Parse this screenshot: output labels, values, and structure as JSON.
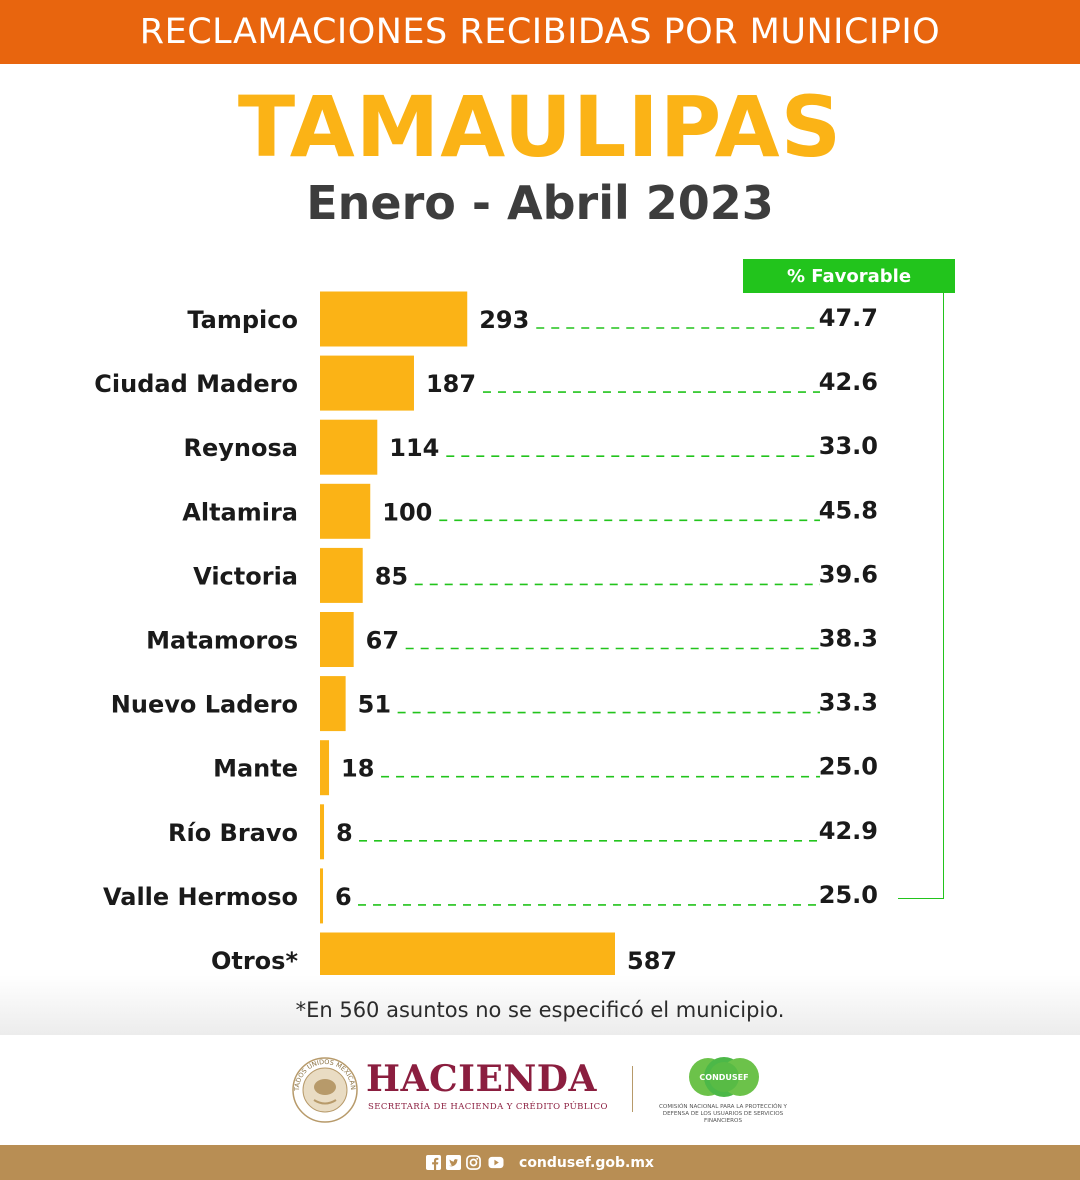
{
  "header": {
    "banner": "RECLAMACIONES RECIBIDAS POR MUNICIPIO",
    "title": "TAMAULIPAS",
    "subtitle": "Enero - Abril 2023"
  },
  "chart_data": {
    "type": "bar",
    "orientation": "horizontal",
    "title": "TAMAULIPAS",
    "subtitle": "Enero - Abril 2023",
    "categories": [
      "Tampico",
      "Ciudad Madero",
      "Reynosa",
      "Altamira",
      "Victoria",
      "Matamoros",
      "Nuevo Ladero",
      "Mante",
      "Río Bravo",
      "Valle Hermoso",
      "Otros*"
    ],
    "series": [
      {
        "values": [
          293,
          187,
          114,
          100,
          85,
          67,
          51,
          18,
          8,
          6,
          587
        ]
      }
    ],
    "favorable_label": "% Favorable",
    "favorable_values": [
      "47.7",
      "42.6",
      "33.0",
      "45.8",
      "39.6",
      "38.3",
      "33.3",
      "25.0",
      "42.9",
      "25.0",
      null
    ],
    "bar_color": "#fbb316",
    "leader_color": "#22c41c",
    "grid": false,
    "legend": "none"
  },
  "footnote": "*En 560 asuntos no se especificó el municipio.",
  "logos": {
    "hacienda_name": "HACIENDA",
    "hacienda_sub": "SECRETARÍA DE HACIENDA Y CRÉDITO PÚBLICO",
    "hacienda_seal_text": "ESTADOS UNIDOS MEXICANOS",
    "condusef_name": "CONDUSEF",
    "condusef_sub": "COMISIÓN NACIONAL PARA LA PROTECCIÓN Y DEFENSA DE LOS USUARIOS DE SERVICIOS FINANCIEROS"
  },
  "footer": {
    "icons": [
      "facebook-icon",
      "twitter-icon",
      "instagram-icon",
      "youtube-icon"
    ],
    "url": "condusef.gob.mx"
  },
  "colors": {
    "banner": "#e8650e",
    "title": "#fbb316",
    "favorable_box": "#22c41c",
    "hacienda": "#8b1e3f",
    "condusef": "#4cb848",
    "footer": "#b88e54"
  }
}
